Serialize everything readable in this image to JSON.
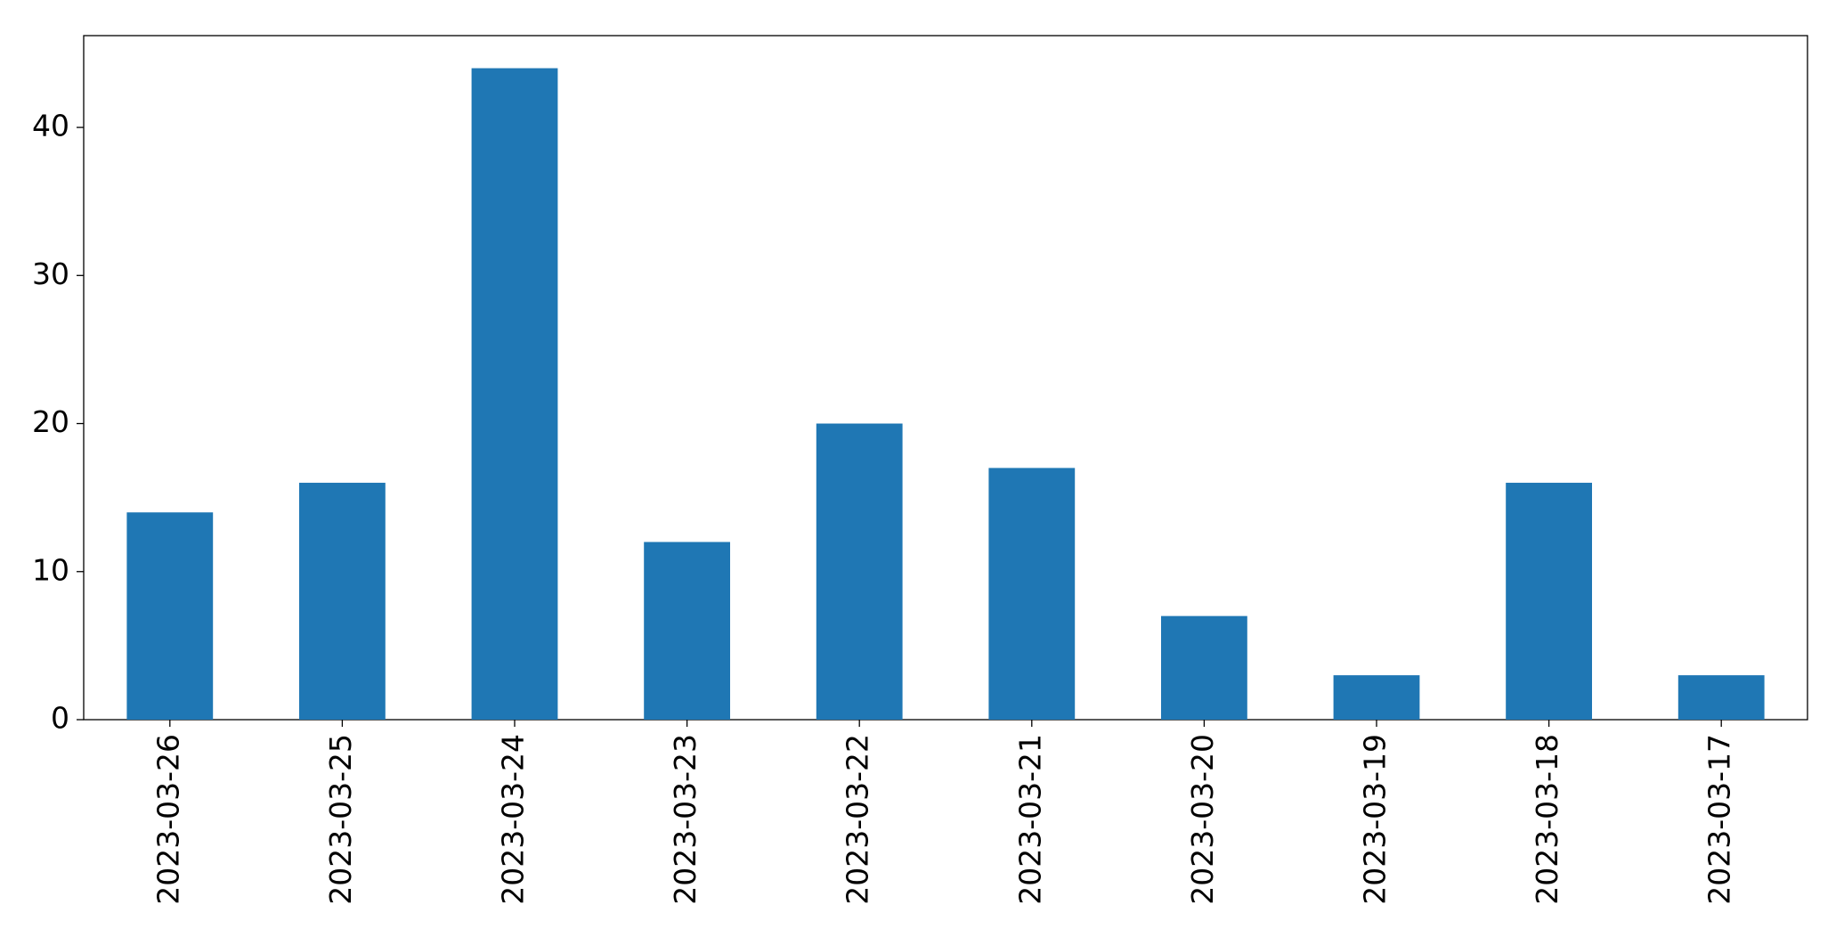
{
  "chart_data": {
    "type": "bar",
    "categories": [
      "2023-03-26",
      "2023-03-25",
      "2023-03-24",
      "2023-03-23",
      "2023-03-22",
      "2023-03-21",
      "2023-03-20",
      "2023-03-19",
      "2023-03-18",
      "2023-03-17"
    ],
    "values": [
      14,
      16,
      44,
      12,
      20,
      17,
      7,
      3,
      16,
      3
    ],
    "color": "#1f77b4",
    "ylim": [
      0,
      46.2
    ],
    "yticks": [
      0,
      10,
      20,
      30,
      40
    ],
    "grid": false
  }
}
